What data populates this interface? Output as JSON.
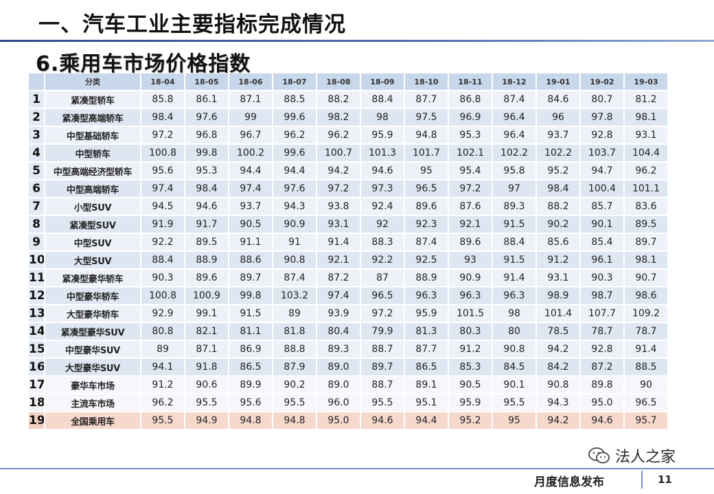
{
  "header": {
    "title": "一、汽车工业主要指标完成情况",
    "subtitle": "6.乘用车市场价格指数"
  },
  "table": {
    "columns": [
      "分类",
      "18-04",
      "18-05",
      "18-06",
      "18-07",
      "18-08",
      "18-09",
      "18-10",
      "18-11",
      "18-12",
      "19-01",
      "19-02",
      "19-03"
    ],
    "rows": [
      {
        "idx": "1",
        "category": "紧凑型轿车",
        "values": [
          "85.8",
          "86.1",
          "87.1",
          "88.5",
          "88.2",
          "88.4",
          "87.7",
          "86.8",
          "87.4",
          "84.6",
          "80.7",
          "81.2"
        ]
      },
      {
        "idx": "2",
        "category": "紧凑型高端轿车",
        "values": [
          "98.4",
          "97.6",
          "99",
          "99.6",
          "98.2",
          "98",
          "97.5",
          "96.9",
          "96.4",
          "96",
          "97.8",
          "98.1"
        ]
      },
      {
        "idx": "3",
        "category": "中型基础轿车",
        "values": [
          "97.2",
          "96.8",
          "96.7",
          "96.2",
          "96.2",
          "95.9",
          "94.8",
          "95.3",
          "96.4",
          "93.7",
          "92.8",
          "93.1"
        ]
      },
      {
        "idx": "4",
        "category": "中型轿车",
        "values": [
          "100.8",
          "99.8",
          "100.2",
          "99.6",
          "100.7",
          "101.3",
          "101.7",
          "102.1",
          "102.2",
          "102.2",
          "103.7",
          "104.4"
        ]
      },
      {
        "idx": "5",
        "category": "中型高端经济型轿车",
        "values": [
          "95.6",
          "95.3",
          "94.4",
          "94.4",
          "94.2",
          "94.6",
          "95",
          "95.4",
          "95.8",
          "95.2",
          "94.7",
          "96.2"
        ]
      },
      {
        "idx": "6",
        "category": "中型高端轿车",
        "values": [
          "97.4",
          "98.4",
          "97.4",
          "97.6",
          "97.2",
          "97.3",
          "96.5",
          "97.2",
          "97",
          "98.4",
          "100.4",
          "101.1"
        ]
      },
      {
        "idx": "7",
        "category": "小型SUV",
        "values": [
          "94.5",
          "94.6",
          "93.7",
          "94.3",
          "93.8",
          "92.4",
          "89.6",
          "87.6",
          "89.3",
          "88.2",
          "85.7",
          "83.6"
        ]
      },
      {
        "idx": "8",
        "category": "紧凑型SUV",
        "values": [
          "91.9",
          "91.7",
          "90.5",
          "90.9",
          "93.1",
          "92",
          "92.3",
          "92.1",
          "91.5",
          "90.2",
          "90.1",
          "89.5"
        ]
      },
      {
        "idx": "9",
        "category": "中型SUV",
        "values": [
          "92.2",
          "89.5",
          "91.1",
          "91",
          "91.4",
          "88.3",
          "87.4",
          "89.6",
          "88.4",
          "85.6",
          "85.4",
          "89.7"
        ]
      },
      {
        "idx": "10",
        "category": "大型SUV",
        "values": [
          "88.4",
          "88.9",
          "88.6",
          "90.8",
          "92.1",
          "92.2",
          "92.5",
          "93",
          "91.5",
          "91.2",
          "96.1",
          "98.1"
        ]
      },
      {
        "idx": "11",
        "category": "紧凑型豪华轿车",
        "values": [
          "90.3",
          "89.6",
          "89.7",
          "87.4",
          "87.2",
          "87",
          "88.9",
          "90.9",
          "91.4",
          "93.1",
          "90.3",
          "90.7"
        ]
      },
      {
        "idx": "12",
        "category": "中型豪华轿车",
        "values": [
          "100.8",
          "100.9",
          "99.8",
          "103.2",
          "97.4",
          "96.5",
          "96.3",
          "96.3",
          "96.3",
          "98.9",
          "98.7",
          "98.6"
        ]
      },
      {
        "idx": "13",
        "category": "大型豪华轿车",
        "values": [
          "92.9",
          "99.1",
          "91.5",
          "89",
          "93.9",
          "97.2",
          "95.9",
          "101.5",
          "98",
          "101.4",
          "107.7",
          "109.2"
        ]
      },
      {
        "idx": "14",
        "category": "紧凑型豪华SUV",
        "values": [
          "80.8",
          "82.1",
          "81.1",
          "81.8",
          "80.4",
          "79.9",
          "81.3",
          "80.3",
          "80",
          "78.5",
          "78.7",
          "78.7"
        ]
      },
      {
        "idx": "15",
        "category": "中型豪华SUV",
        "values": [
          "89",
          "87.1",
          "86.9",
          "88.8",
          "89.3",
          "88.7",
          "87.7",
          "91.2",
          "90.8",
          "94.2",
          "92.8",
          "91.4"
        ]
      },
      {
        "idx": "16",
        "category": "大型豪华SUV",
        "values": [
          "94.1",
          "91.8",
          "86.5",
          "87.9",
          "89.0",
          "89.7",
          "86.5",
          "85.3",
          "84.5",
          "84.2",
          "87.2",
          "88.5"
        ]
      },
      {
        "idx": "17",
        "category": "豪华车市场",
        "values": [
          "91.2",
          "90.6",
          "89.9",
          "90.2",
          "89.0",
          "88.7",
          "89.1",
          "90.5",
          "90.1",
          "90.8",
          "89.8",
          "90"
        ]
      },
      {
        "idx": "18",
        "category": "主流车市场",
        "values": [
          "96.2",
          "95.5",
          "95.6",
          "95.5",
          "96.0",
          "95.5",
          "95.1",
          "95.9",
          "95.5",
          "94.3",
          "95.0",
          "96.5"
        ]
      },
      {
        "idx": "19",
        "category": "全国乘用车",
        "values": [
          "95.5",
          "94.9",
          "94.8",
          "94.8",
          "95.0",
          "94.6",
          "94.4",
          "95.2",
          "95",
          "94.2",
          "94.6",
          "95.7"
        ]
      }
    ]
  },
  "watermark": {
    "text": "法人之家",
    "icon": "wechat-icon"
  },
  "footer": {
    "label": "月度信息发布",
    "page_number": "11"
  },
  "colors": {
    "header_rule": "#4a6fb0",
    "row_odd": "#eef2f8",
    "row_even": "#dde6f1",
    "row_highlight": "#f6d8cc"
  }
}
